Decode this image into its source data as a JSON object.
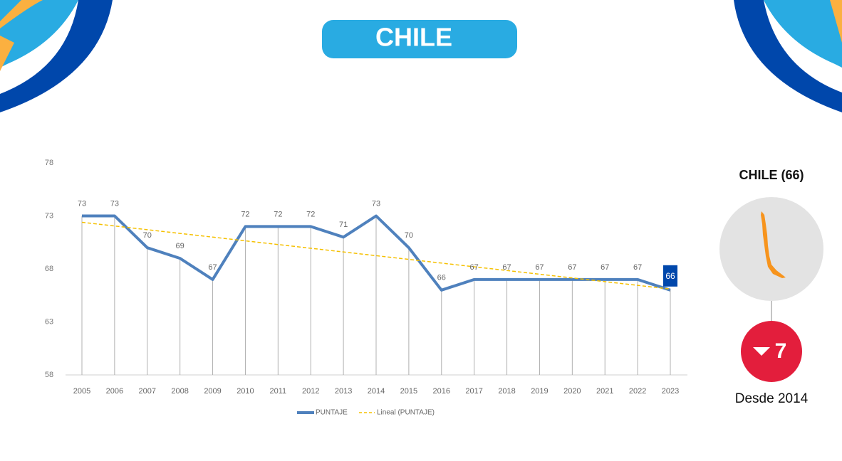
{
  "title": "CHILE",
  "chart_data": {
    "type": "line",
    "categories": [
      "2005",
      "2006",
      "2007",
      "2008",
      "2009",
      "2010",
      "2011",
      "2012",
      "2013",
      "2014",
      "2015",
      "2016",
      "2017",
      "2018",
      "2019",
      "2020",
      "2021",
      "2022",
      "2023"
    ],
    "series": [
      {
        "name": "PUNTAJE",
        "color": "#4f81bd",
        "values": [
          73,
          73,
          70,
          69,
          67,
          72,
          72,
          72,
          71,
          73,
          70,
          66,
          67,
          67,
          67,
          67,
          67,
          67,
          66
        ]
      },
      {
        "name": "Lineal (PUNTAJE)",
        "color": "#f5c000",
        "values": [
          72.4,
          72.05,
          71.7,
          71.35,
          71.0,
          70.65,
          70.3,
          69.95,
          69.6,
          69.25,
          68.9,
          68.55,
          68.2,
          67.85,
          67.5,
          67.15,
          66.8,
          66.45,
          66.1
        ]
      }
    ],
    "ylim": [
      58,
      78
    ],
    "yticks": [
      58,
      63,
      68,
      73,
      78
    ],
    "legend": "bottom"
  },
  "side": {
    "label": "CHILE (66)",
    "change": "7",
    "since": "Desde 2014"
  }
}
